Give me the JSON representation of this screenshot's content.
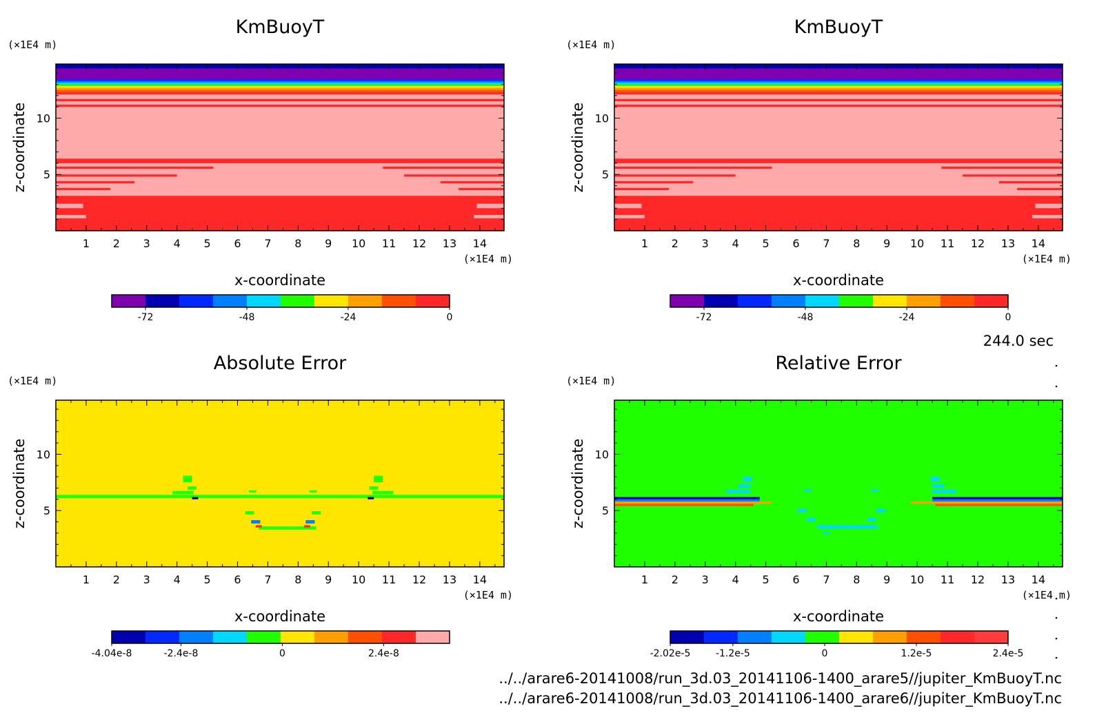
{
  "time_label": "244.0 sec",
  "file_paths": [
    "../../arare6-20141008/run_3d.03_20141106-1400_arare5//jupiter_KmBuoyT.nc",
    "../../arare6-20141008/run_3d.03_20141106-1400_arare6//jupiter_KmBuoyT.nc"
  ],
  "chart_data": [
    {
      "type": "heatmap",
      "title": "KmBuoyT",
      "xlabel": "x-coordinate",
      "ylabel": "z-coordinate",
      "x_unit": "(×1E4 m)",
      "y_unit": "(×1E4 m)",
      "xlim": [
        0,
        14.8
      ],
      "ylim": [
        0,
        14.8
      ],
      "x_ticks": [
        1,
        2,
        3,
        4,
        5,
        6,
        7,
        8,
        9,
        10,
        11,
        12,
        13,
        14
      ],
      "y_ticks": [
        5,
        10
      ],
      "colorbar": {
        "colors": [
          "#8000b0",
          "#0000b0",
          "#0028ff",
          "#0080ff",
          "#00d8ff",
          "#20ff00",
          "#ffe600",
          "#ffa000",
          "#ff5000",
          "#ff2828"
        ],
        "levels": [
          -80,
          -72,
          -64,
          -56,
          -48,
          -40,
          -32,
          -24,
          -16,
          -8,
          0
        ],
        "tick_values": [
          -72,
          -48,
          -24,
          0
        ],
        "tick_labels": [
          "-72",
          "-48",
          "-24",
          "0"
        ]
      },
      "field": {
        "background": "#ffaaaa",
        "bands": [
          {
            "z0": 0,
            "z1": 3.1,
            "color": "#ff2828"
          },
          {
            "z0": 6.0,
            "z1": 6.4,
            "color": "#ff2828"
          },
          {
            "z0": 5.5,
            "z1": 5.7,
            "color": "#ff2828",
            "x0": 0,
            "x1": 5.2
          },
          {
            "z0": 5.5,
            "z1": 5.7,
            "color": "#ff2828",
            "x0": 10.8,
            "x1": 14.8
          },
          {
            "z0": 4.8,
            "z1": 5.0,
            "color": "#ff2828",
            "x0": 0,
            "x1": 4.0
          },
          {
            "z0": 4.8,
            "z1": 5.0,
            "color": "#ff2828",
            "x0": 11.5,
            "x1": 14.8
          },
          {
            "z0": 4.2,
            "z1": 4.4,
            "color": "#ff2828",
            "x0": 0,
            "x1": 2.6
          },
          {
            "z0": 4.2,
            "z1": 4.4,
            "color": "#ff2828",
            "x0": 12.7,
            "x1": 14.8
          },
          {
            "z0": 3.6,
            "z1": 3.8,
            "color": "#ff2828",
            "x0": 0,
            "x1": 1.8
          },
          {
            "z0": 3.6,
            "z1": 3.8,
            "color": "#ff2828",
            "x0": 13.3,
            "x1": 14.8
          },
          {
            "z0": 2.0,
            "z1": 2.4,
            "color": "#ffaaaa",
            "x0": 0,
            "x1": 0.9
          },
          {
            "z0": 2.0,
            "z1": 2.4,
            "color": "#ffaaaa",
            "x0": 13.9,
            "x1": 14.8
          },
          {
            "z0": 1.1,
            "z1": 1.4,
            "color": "#ffaaaa",
            "x0": 0,
            "x1": 1.0
          },
          {
            "z0": 1.1,
            "z1": 1.4,
            "color": "#ffaaaa",
            "x0": 13.8,
            "x1": 14.8
          },
          {
            "z0": 11.0,
            "z1": 11.2,
            "color": "#ff2828"
          },
          {
            "z0": 11.5,
            "z1": 11.7,
            "color": "#ff2828"
          },
          {
            "z0": 12.1,
            "z1": 12.3,
            "color": "#ff2828"
          },
          {
            "z0": 12.3,
            "z1": 12.5,
            "color": "#ff5000"
          },
          {
            "z0": 12.5,
            "z1": 12.7,
            "color": "#ffa000"
          },
          {
            "z0": 12.7,
            "z1": 12.85,
            "color": "#ffe600"
          },
          {
            "z0": 12.85,
            "z1": 13.0,
            "color": "#20ff00"
          },
          {
            "z0": 13.0,
            "z1": 13.15,
            "color": "#00d8ff"
          },
          {
            "z0": 13.15,
            "z1": 13.3,
            "color": "#0080ff"
          },
          {
            "z0": 13.3,
            "z1": 13.45,
            "color": "#0028ff"
          },
          {
            "z0": 13.45,
            "z1": 14.4,
            "color": "#8000b0"
          },
          {
            "z0": 14.4,
            "z1": 14.8,
            "color": "#0000b0"
          }
        ],
        "blobs": []
      }
    },
    {
      "type": "heatmap",
      "title": "KmBuoyT",
      "xlabel": "x-coordinate",
      "ylabel": "z-coordinate",
      "x_unit": "(×1E4 m)",
      "y_unit": "(×1E4 m)",
      "xlim": [
        0,
        14.8
      ],
      "ylim": [
        0,
        14.8
      ],
      "x_ticks": [
        1,
        2,
        3,
        4,
        5,
        6,
        7,
        8,
        9,
        10,
        11,
        12,
        13,
        14
      ],
      "y_ticks": [
        5,
        10
      ],
      "colorbar": {
        "colors": [
          "#8000b0",
          "#0000b0",
          "#0028ff",
          "#0080ff",
          "#00d8ff",
          "#20ff00",
          "#ffe600",
          "#ffa000",
          "#ff5000",
          "#ff2828"
        ],
        "levels": [
          -80,
          -72,
          -64,
          -56,
          -48,
          -40,
          -32,
          -24,
          -16,
          -8,
          0
        ],
        "tick_values": [
          -72,
          -48,
          -24,
          0
        ],
        "tick_labels": [
          "-72",
          "-48",
          "-24",
          "0"
        ]
      },
      "field": {
        "background": "#ffaaaa",
        "bands": [
          {
            "z0": 0,
            "z1": 3.1,
            "color": "#ff2828"
          },
          {
            "z0": 6.0,
            "z1": 6.4,
            "color": "#ff2828"
          },
          {
            "z0": 5.5,
            "z1": 5.7,
            "color": "#ff2828",
            "x0": 0,
            "x1": 5.2
          },
          {
            "z0": 5.5,
            "z1": 5.7,
            "color": "#ff2828",
            "x0": 10.8,
            "x1": 14.8
          },
          {
            "z0": 4.8,
            "z1": 5.0,
            "color": "#ff2828",
            "x0": 0,
            "x1": 4.0
          },
          {
            "z0": 4.8,
            "z1": 5.0,
            "color": "#ff2828",
            "x0": 11.5,
            "x1": 14.8
          },
          {
            "z0": 4.2,
            "z1": 4.4,
            "color": "#ff2828",
            "x0": 0,
            "x1": 2.6
          },
          {
            "z0": 4.2,
            "z1": 4.4,
            "color": "#ff2828",
            "x0": 12.7,
            "x1": 14.8
          },
          {
            "z0": 3.6,
            "z1": 3.8,
            "color": "#ff2828",
            "x0": 0,
            "x1": 1.8
          },
          {
            "z0": 3.6,
            "z1": 3.8,
            "color": "#ff2828",
            "x0": 13.3,
            "x1": 14.8
          },
          {
            "z0": 2.0,
            "z1": 2.4,
            "color": "#ffaaaa",
            "x0": 0,
            "x1": 0.9
          },
          {
            "z0": 2.0,
            "z1": 2.4,
            "color": "#ffaaaa",
            "x0": 13.9,
            "x1": 14.8
          },
          {
            "z0": 1.1,
            "z1": 1.4,
            "color": "#ffaaaa",
            "x0": 0,
            "x1": 1.0
          },
          {
            "z0": 1.1,
            "z1": 1.4,
            "color": "#ffaaaa",
            "x0": 13.8,
            "x1": 14.8
          },
          {
            "z0": 11.0,
            "z1": 11.2,
            "color": "#ff2828"
          },
          {
            "z0": 11.5,
            "z1": 11.7,
            "color": "#ff2828"
          },
          {
            "z0": 12.1,
            "z1": 12.3,
            "color": "#ff2828"
          },
          {
            "z0": 12.3,
            "z1": 12.5,
            "color": "#ff5000"
          },
          {
            "z0": 12.5,
            "z1": 12.7,
            "color": "#ffa000"
          },
          {
            "z0": 12.7,
            "z1": 12.85,
            "color": "#ffe600"
          },
          {
            "z0": 12.85,
            "z1": 13.0,
            "color": "#20ff00"
          },
          {
            "z0": 13.0,
            "z1": 13.15,
            "color": "#00d8ff"
          },
          {
            "z0": 13.15,
            "z1": 13.3,
            "color": "#0080ff"
          },
          {
            "z0": 13.3,
            "z1": 13.45,
            "color": "#0028ff"
          },
          {
            "z0": 13.45,
            "z1": 14.4,
            "color": "#8000b0"
          },
          {
            "z0": 14.4,
            "z1": 14.8,
            "color": "#0000b0"
          }
        ],
        "blobs": []
      }
    },
    {
      "type": "heatmap",
      "title": "Absolute Error",
      "xlabel": "x-coordinate",
      "ylabel": "z-coordinate",
      "x_unit": "(×1E4 m)",
      "y_unit": "(×1E4 m)",
      "xlim": [
        0,
        14.8
      ],
      "ylim": [
        0,
        14.8
      ],
      "x_ticks": [
        1,
        2,
        3,
        4,
        5,
        6,
        7,
        8,
        9,
        10,
        11,
        12,
        13,
        14
      ],
      "y_ticks": [
        5,
        10
      ],
      "colorbar": {
        "colors": [
          "#0000b0",
          "#0028ff",
          "#0080ff",
          "#00d8ff",
          "#20ff00",
          "#ffe600",
          "#ffa000",
          "#ff5000",
          "#ff2828",
          "#ffaaaa"
        ],
        "levels": [
          -4.04e-08,
          -3.24e-08,
          -2.44e-08,
          -1.64e-08,
          -8.4e-09,
          -4e-10,
          7.6e-09,
          1.56e-08,
          2.36e-08,
          3.16e-08,
          3.96e-08
        ],
        "tick_values": [
          -4.04e-08,
          -2.4e-08,
          0,
          2.4e-08
        ],
        "tick_labels": [
          "-4.04e-8",
          "-2.4e-8",
          "0",
          "2.4e-8"
        ]
      },
      "field": {
        "background": "#ffe600",
        "bands": [
          {
            "z0": 6.1,
            "z1": 6.4,
            "color": "#20ff00",
            "x0": 0,
            "x1": 14.8
          },
          {
            "z0": 3.3,
            "z1": 3.6,
            "color": "#20ff00",
            "x0": 6.7,
            "x1": 8.6
          }
        ],
        "blobs": [
          {
            "x": 4.35,
            "z": 7.8,
            "w": 0.3,
            "h": 0.6,
            "color": "#20ff00"
          },
          {
            "x": 10.65,
            "z": 7.8,
            "w": 0.3,
            "h": 0.6,
            "color": "#20ff00"
          },
          {
            "x": 4.5,
            "z": 7.0,
            "w": 0.3,
            "h": 0.3,
            "color": "#20ff00"
          },
          {
            "x": 10.5,
            "z": 7.0,
            "w": 0.3,
            "h": 0.3,
            "color": "#20ff00"
          },
          {
            "x": 4.2,
            "z": 6.6,
            "w": 0.7,
            "h": 0.3,
            "color": "#20ff00"
          },
          {
            "x": 10.8,
            "z": 6.6,
            "w": 0.7,
            "h": 0.3,
            "color": "#20ff00"
          },
          {
            "x": 6.5,
            "z": 6.7,
            "w": 0.25,
            "h": 0.2,
            "color": "#20ff00"
          },
          {
            "x": 8.5,
            "z": 6.7,
            "w": 0.25,
            "h": 0.2,
            "color": "#20ff00"
          },
          {
            "x": 6.4,
            "z": 4.8,
            "w": 0.3,
            "h": 0.3,
            "color": "#20ff00"
          },
          {
            "x": 8.6,
            "z": 4.8,
            "w": 0.3,
            "h": 0.3,
            "color": "#20ff00"
          },
          {
            "x": 6.6,
            "z": 4.0,
            "w": 0.3,
            "h": 0.3,
            "color": "#0080ff"
          },
          {
            "x": 8.4,
            "z": 4.0,
            "w": 0.3,
            "h": 0.3,
            "color": "#0080ff"
          },
          {
            "x": 6.7,
            "z": 3.6,
            "w": 0.2,
            "h": 0.2,
            "color": "#ff2828"
          },
          {
            "x": 8.3,
            "z": 3.6,
            "w": 0.2,
            "h": 0.2,
            "color": "#ff2828"
          },
          {
            "x": 4.6,
            "z": 6.1,
            "w": 0.2,
            "h": 0.2,
            "color": "#0000b0"
          },
          {
            "x": 10.4,
            "z": 6.1,
            "w": 0.2,
            "h": 0.2,
            "color": "#0000b0"
          }
        ]
      }
    },
    {
      "type": "heatmap",
      "title": "Relative Error",
      "xlabel": "x-coordinate",
      "ylabel": "z-coordinate",
      "x_unit": "(×1E4 m)",
      "y_unit": "(×1E4 m)",
      "xlim": [
        0,
        14.8
      ],
      "ylim": [
        0,
        14.8
      ],
      "x_ticks": [
        1,
        2,
        3,
        4,
        5,
        6,
        7,
        8,
        9,
        10,
        11,
        12,
        13,
        14
      ],
      "y_ticks": [
        5,
        10
      ],
      "colorbar": {
        "colors": [
          "#0000b0",
          "#0028ff",
          "#0080ff",
          "#00d8ff",
          "#20ff00",
          "#ffe600",
          "#ffa000",
          "#ff5000",
          "#ff2828",
          "#ff3c3c"
        ],
        "levels": [
          -2.02e-05,
          -1.6e-05,
          -1.2e-05,
          -8e-06,
          -4e-06,
          0,
          4e-06,
          8e-06,
          1.2e-05,
          1.8e-05,
          2.4e-05
        ],
        "tick_values": [
          -2.02e-05,
          -1.2e-05,
          0,
          1.2e-05,
          2.4e-05
        ],
        "tick_labels": [
          "-2.02e-5",
          "-1.2e-5",
          "0",
          "1.2e-5",
          "2.4e-5"
        ]
      },
      "field": {
        "background": "#20ff00",
        "bands": [
          {
            "z0": 6.0,
            "z1": 6.2,
            "color": "#0000b0",
            "x0": 0,
            "x1": 4.8
          },
          {
            "z0": 6.0,
            "z1": 6.2,
            "color": "#0000b0",
            "x0": 10.5,
            "x1": 14.8
          },
          {
            "z0": 5.8,
            "z1": 6.0,
            "color": "#0080ff",
            "x0": 0,
            "x1": 4.8
          },
          {
            "z0": 5.8,
            "z1": 6.0,
            "color": "#0080ff",
            "x0": 10.5,
            "x1": 14.8
          },
          {
            "z0": 5.6,
            "z1": 5.8,
            "color": "#ffa000",
            "x0": 0,
            "x1": 5.2
          },
          {
            "z0": 5.6,
            "z1": 5.8,
            "color": "#ffa000",
            "x0": 9.8,
            "x1": 14.8
          },
          {
            "z0": 5.4,
            "z1": 5.6,
            "color": "#ff5000",
            "x0": 0,
            "x1": 4.6
          },
          {
            "z0": 5.4,
            "z1": 5.6,
            "color": "#ff5000",
            "x0": 10.6,
            "x1": 14.8
          },
          {
            "z0": 3.4,
            "z1": 3.7,
            "color": "#00d8ff",
            "x0": 6.7,
            "x1": 8.7
          }
        ],
        "blobs": [
          {
            "x": 4.4,
            "z": 7.8,
            "w": 0.3,
            "h": 0.4,
            "color": "#00d8ff"
          },
          {
            "x": 10.6,
            "z": 7.8,
            "w": 0.3,
            "h": 0.4,
            "color": "#00d8ff"
          },
          {
            "x": 4.3,
            "z": 7.2,
            "w": 0.4,
            "h": 0.3,
            "color": "#00d8ff"
          },
          {
            "x": 10.7,
            "z": 7.2,
            "w": 0.4,
            "h": 0.3,
            "color": "#00d8ff"
          },
          {
            "x": 4.1,
            "z": 6.7,
            "w": 0.8,
            "h": 0.3,
            "color": "#00d8ff"
          },
          {
            "x": 10.9,
            "z": 6.7,
            "w": 0.8,
            "h": 0.3,
            "color": "#00d8ff"
          },
          {
            "x": 6.4,
            "z": 6.8,
            "w": 0.25,
            "h": 0.2,
            "color": "#00d8ff"
          },
          {
            "x": 8.6,
            "z": 6.8,
            "w": 0.25,
            "h": 0.2,
            "color": "#00d8ff"
          },
          {
            "x": 6.2,
            "z": 5.0,
            "w": 0.3,
            "h": 0.3,
            "color": "#00d8ff"
          },
          {
            "x": 8.8,
            "z": 5.0,
            "w": 0.3,
            "h": 0.3,
            "color": "#00d8ff"
          },
          {
            "x": 6.5,
            "z": 4.2,
            "w": 0.3,
            "h": 0.3,
            "color": "#00d8ff"
          },
          {
            "x": 8.5,
            "z": 4.2,
            "w": 0.3,
            "h": 0.3,
            "color": "#00d8ff"
          },
          {
            "x": 7.0,
            "z": 3.0,
            "w": 0.2,
            "h": 0.2,
            "color": "#00d8ff"
          }
        ]
      }
    }
  ]
}
